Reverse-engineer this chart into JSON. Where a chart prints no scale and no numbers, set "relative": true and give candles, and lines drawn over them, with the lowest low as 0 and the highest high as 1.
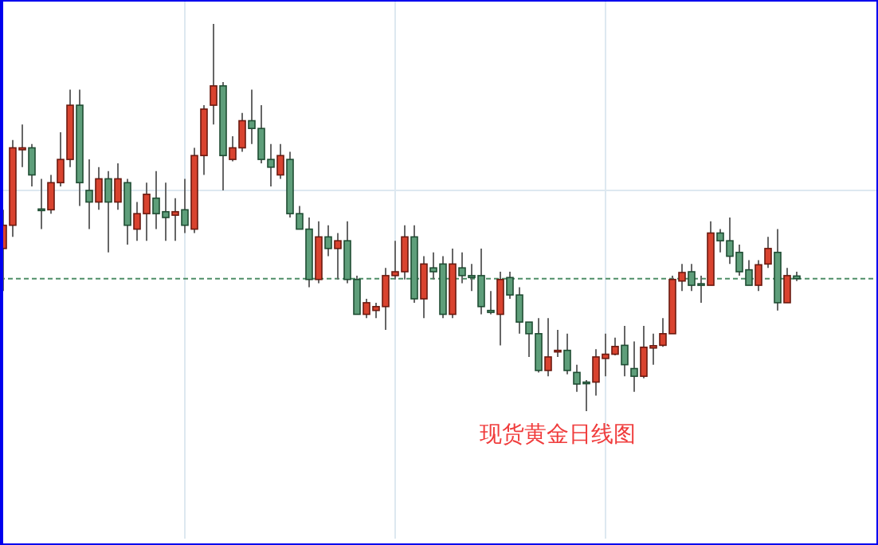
{
  "chart_data": {
    "type": "candlestick",
    "relative": true,
    "title": "现货黄金日线图",
    "grid": true,
    "categories": [
      null,
      null,
      null,
      null,
      null,
      null,
      null,
      null,
      null,
      null,
      null,
      null,
      null,
      null,
      null,
      null,
      null,
      null,
      null,
      null,
      null,
      null,
      null,
      null,
      null,
      null,
      null,
      null,
      null,
      null,
      null,
      null,
      null,
      null,
      null,
      null,
      null,
      null,
      null,
      null,
      null,
      null,
      null,
      null,
      null,
      null,
      null,
      null,
      null,
      null,
      null,
      null,
      null,
      null,
      null,
      null,
      null,
      null,
      null,
      null,
      null,
      null,
      null,
      null,
      null,
      null,
      null,
      null,
      null,
      null,
      null,
      null,
      null,
      null,
      null,
      null,
      null,
      null,
      null,
      null,
      null,
      null,
      null,
      null
    ],
    "ohlc": [
      [
        0.42,
        0.52,
        0.31,
        0.48
      ],
      [
        0.48,
        0.7,
        0.45,
        0.68
      ],
      [
        0.675,
        0.74,
        0.63,
        0.68
      ],
      [
        0.68,
        0.69,
        0.58,
        0.61
      ],
      [
        0.522,
        0.6,
        0.47,
        0.52
      ],
      [
        0.52,
        0.61,
        0.51,
        0.59
      ],
      [
        0.59,
        0.72,
        0.58,
        0.65
      ],
      [
        0.65,
        0.83,
        0.63,
        0.79
      ],
      [
        0.79,
        0.83,
        0.53,
        0.59
      ],
      [
        0.57,
        0.65,
        0.47,
        0.54
      ],
      [
        0.54,
        0.63,
        0.52,
        0.6
      ],
      [
        0.6,
        0.62,
        0.41,
        0.54
      ],
      [
        0.54,
        0.64,
        0.52,
        0.6
      ],
      [
        0.59,
        0.6,
        0.43,
        0.48
      ],
      [
        0.47,
        0.54,
        0.44,
        0.51
      ],
      [
        0.51,
        0.59,
        0.44,
        0.56
      ],
      [
        0.55,
        0.62,
        0.47,
        0.51
      ],
      [
        0.515,
        0.59,
        0.44,
        0.5
      ],
      [
        0.506,
        0.55,
        0.44,
        0.515
      ],
      [
        0.52,
        0.6,
        0.46,
        0.48
      ],
      [
        0.47,
        0.68,
        0.46,
        0.66
      ],
      [
        0.66,
        0.79,
        0.61,
        0.78
      ],
      [
        0.79,
        1,
        0.74,
        0.84
      ],
      [
        0.84,
        0.85,
        0.57,
        0.66
      ],
      [
        0.65,
        0.71,
        0.645,
        0.68
      ],
      [
        0.68,
        0.77,
        0.67,
        0.75
      ],
      [
        0.75,
        0.83,
        0.69,
        0.73
      ],
      [
        0.73,
        0.79,
        0.64,
        0.65
      ],
      [
        0.65,
        0.69,
        0.58,
        0.63
      ],
      [
        0.61,
        0.69,
        0.6,
        0.66
      ],
      [
        0.65,
        0.67,
        0.5,
        0.51
      ],
      [
        0.51,
        0.53,
        0.47,
        0.47
      ],
      [
        0.47,
        0.5,
        0.32,
        0.34
      ],
      [
        0.34,
        0.49,
        0.33,
        0.45
      ],
      [
        0.45,
        0.48,
        0.4,
        0.42
      ],
      [
        0.42,
        0.46,
        0.34,
        0.44
      ],
      [
        0.44,
        0.49,
        0.33,
        0.34
      ],
      [
        0.34,
        0.35,
        0.25,
        0.25
      ],
      [
        0.25,
        0.29,
        0.24,
        0.28
      ],
      [
        0.26,
        0.28,
        0.24,
        0.27
      ],
      [
        0.27,
        0.37,
        0.21,
        0.35
      ],
      [
        0.35,
        0.44,
        0.34,
        0.36
      ],
      [
        0.36,
        0.48,
        0.34,
        0.45
      ],
      [
        0.45,
        0.48,
        0.28,
        0.29
      ],
      [
        0.29,
        0.4,
        0.24,
        0.38
      ],
      [
        0.37,
        0.41,
        0.34,
        0.36
      ],
      [
        0.38,
        0.4,
        0.24,
        0.25
      ],
      [
        0.25,
        0.42,
        0.24,
        0.38
      ],
      [
        0.37,
        0.41,
        0.33,
        0.35
      ],
      [
        0.35,
        0.38,
        0.31,
        0.345
      ],
      [
        0.35,
        0.42,
        0.25,
        0.27
      ],
      [
        0.26,
        0.31,
        0.25,
        0.255
      ],
      [
        0.25,
        0.36,
        0.17,
        0.34
      ],
      [
        0.345,
        0.36,
        0.29,
        0.3
      ],
      [
        0.3,
        0.32,
        0.2,
        0.23
      ],
      [
        0.23,
        0.23,
        0.14,
        0.2
      ],
      [
        0.2,
        0.24,
        0.1,
        0.105
      ],
      [
        0.105,
        0.24,
        0.09,
        0.14
      ],
      [
        0.156,
        0.21,
        0.14,
        0.157
      ],
      [
        0.157,
        0.2,
        0.095,
        0.105
      ],
      [
        0.1,
        0.12,
        0.05,
        0.07
      ],
      [
        0.075,
        0.08,
        0,
        0.074
      ],
      [
        0.075,
        0.16,
        0.04,
        0.14
      ],
      [
        0.136,
        0.2,
        0.09,
        0.147
      ],
      [
        0.147,
        0.19,
        0.144,
        0.167
      ],
      [
        0.17,
        0.22,
        0.09,
        0.12
      ],
      [
        0.11,
        0.18,
        0.05,
        0.09
      ],
      [
        0.09,
        0.22,
        0.085,
        0.165
      ],
      [
        0.163,
        0.2,
        0.12,
        0.169
      ],
      [
        0.17,
        0.24,
        0.166,
        0.2
      ],
      [
        0.2,
        0.35,
        0.2,
        0.34
      ],
      [
        0.336,
        0.38,
        0.31,
        0.358
      ],
      [
        0.36,
        0.38,
        0.31,
        0.325
      ],
      [
        0.329,
        0.35,
        0.28,
        0.328
      ],
      [
        0.325,
        0.49,
        0.325,
        0.46
      ],
      [
        0.46,
        0.47,
        0.41,
        0.44
      ],
      [
        0.44,
        0.5,
        0.38,
        0.4
      ],
      [
        0.41,
        0.43,
        0.35,
        0.36
      ],
      [
        0.365,
        0.39,
        0.325,
        0.325
      ],
      [
        0.325,
        0.39,
        0.31,
        0.378
      ],
      [
        0.38,
        0.45,
        0.37,
        0.42
      ],
      [
        0.41,
        0.47,
        0.26,
        0.28
      ],
      [
        0.28,
        0.37,
        0.28,
        0.35
      ],
      [
        0.349,
        0.36,
        0.336,
        0.342
      ]
    ],
    "ref_lines": [
      {
        "axis": "y",
        "value": 0.342,
        "color": "#4f8f68",
        "line_style": "dashed"
      }
    ]
  }
}
